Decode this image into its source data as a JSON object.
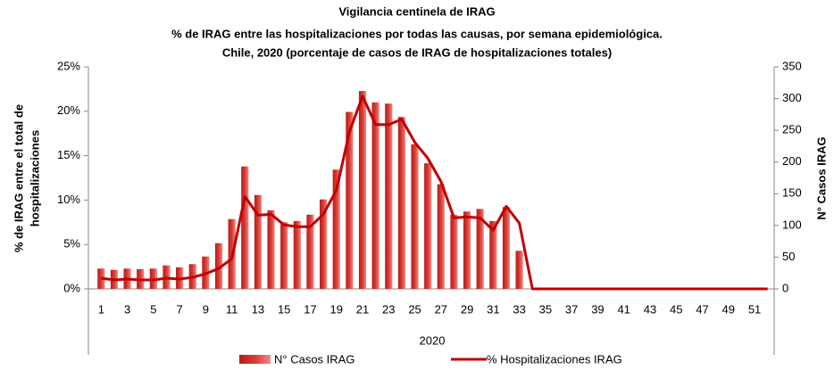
{
  "chart_data": {
    "type": "bar-line",
    "title": "Vigilancia centinela de IRAG",
    "subtitle": [
      "% de IRAG entre las hospitalizaciones por todas las causas, por semana epidemiológica.",
      "Chile, 2020  (porcentaje de casos de IRAG de hospitalizaciones totales)"
    ],
    "xlabel": "2020",
    "ylabel": [
      "% de IRAG entre el total de",
      "hospitalizaciones"
    ],
    "y2label": "N° Casos IRAG",
    "categories": [
      1,
      null,
      3,
      null,
      5,
      null,
      7,
      null,
      9,
      null,
      11,
      null,
      13,
      null,
      15,
      null,
      17,
      null,
      19,
      null,
      21,
      null,
      23,
      null,
      25,
      null,
      27,
      null,
      29,
      null,
      31,
      null,
      33,
      null,
      35,
      null,
      37,
      null,
      39,
      null,
      41,
      null,
      43,
      null,
      45,
      null,
      47,
      null,
      49,
      null,
      51,
      null
    ],
    "series": [
      {
        "name": "N° Casos IRAG",
        "type": "bar",
        "axis": "y2",
        "color": "#d93a35",
        "values": [
          32,
          30,
          32,
          31,
          32,
          37,
          34,
          39,
          51,
          72,
          110,
          193,
          148,
          124,
          105,
          107,
          117,
          141,
          188,
          279,
          312,
          294,
          292,
          271,
          228,
          198,
          165,
          117,
          122,
          126,
          107,
          129,
          60,
          0,
          0,
          0,
          0,
          0,
          0,
          0,
          0,
          0,
          0,
          0,
          0,
          0,
          0,
          0,
          0,
          0,
          0,
          0
        ]
      },
      {
        "name": "% Hospitalizaciones IRAG",
        "type": "line",
        "axis": "y",
        "color": "#c00000",
        "values": [
          1.2,
          1.0,
          1.1,
          1.0,
          1.0,
          1.2,
          1.1,
          1.3,
          1.7,
          2.3,
          3.4,
          10.4,
          8.3,
          8.4,
          7.2,
          7.0,
          7.0,
          8.4,
          11.1,
          17.7,
          21.7,
          18.5,
          18.5,
          19.1,
          16.5,
          14.7,
          12.1,
          8.0,
          8.1,
          8.0,
          6.6,
          9.3,
          7.4,
          0,
          0,
          0,
          0,
          0,
          0,
          0,
          0,
          0,
          0,
          0,
          0,
          0,
          0,
          0,
          0,
          0,
          0,
          0
        ]
      }
    ],
    "ylim": [
      0,
      25
    ],
    "yticks": [
      {
        "value": 0,
        "label": "0%"
      },
      {
        "value": 5,
        "label": "5%"
      },
      {
        "value": 10,
        "label": "10%"
      },
      {
        "value": 15,
        "label": "15%"
      },
      {
        "value": 20,
        "label": "20%"
      },
      {
        "value": 25,
        "label": "25%"
      }
    ],
    "y2lim": [
      0,
      350
    ],
    "y2ticks": [
      0,
      50,
      100,
      150,
      200,
      250,
      300,
      350
    ]
  }
}
